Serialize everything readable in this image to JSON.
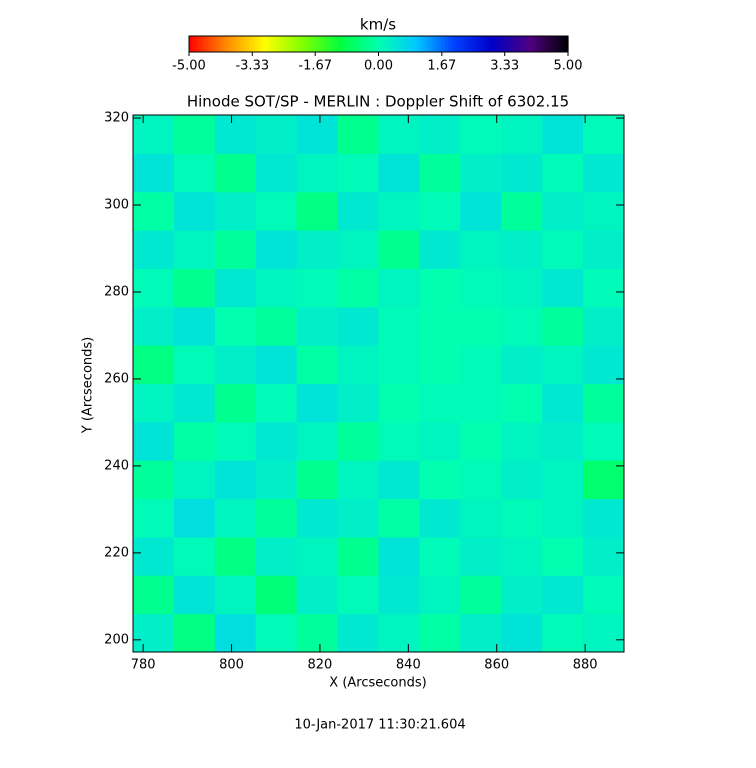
{
  "chart_data": {
    "type": "heatmap",
    "title": "Hinode SOT/SP - MERLIN : Doppler Shift of 6302.15",
    "x_label": "X (Arcseconds)",
    "y_label": "Y (Arcseconds)",
    "footer": "10-Jan-2017 11:30:21.604",
    "xlim": [
      777.7,
      888.8
    ],
    "ylim": [
      197.2,
      320.7
    ],
    "xticks": [
      780,
      800,
      820,
      840,
      860,
      880
    ],
    "yticks": [
      200,
      220,
      240,
      260,
      280,
      300,
      320
    ],
    "colorbar": {
      "title": "km/s",
      "clim": [
        -5,
        5
      ],
      "colormap": [
        "#ff0000",
        "#ff8c00",
        "#ffff00",
        "#80ff00",
        "#00ff40",
        "#00ffb0",
        "#00c8ff",
        "#0040ff",
        "#0000c8",
        "#500080",
        "#000000"
      ],
      "ticks": [
        {
          "value": -5,
          "label": "-5.00"
        },
        {
          "value": -3.33,
          "label": "-3.33"
        },
        {
          "value": -1.67,
          "label": "-1.67"
        },
        {
          "value": 0,
          "label": "0.00"
        },
        {
          "value": 1.67,
          "label": "1.67"
        },
        {
          "value": 3.33,
          "label": "3.33"
        },
        {
          "value": 5,
          "label": "5.00"
        }
      ]
    },
    "z": [
      [
        0.3,
        -0.4,
        0.6,
        0.1,
        -0.2,
        0.4,
        0.2,
        -0.1,
        0.3,
        0.5,
        0.1,
        0.2
      ],
      [
        -0.3,
        0.5,
        0.2,
        -0.5,
        0.3,
        0.1,
        0.4,
        0.2,
        -0.2,
        0.3,
        0.4,
        0.1
      ],
      [
        0.4,
        0.1,
        -0.4,
        0.3,
        0.2,
        -0.3,
        0.5,
        0.1,
        0.3,
        0.2,
        0.0,
        0.3
      ],
      [
        0.1,
        0.6,
        0.2,
        -0.2,
        0.4,
        0.3,
        -0.1,
        0.4,
        0.2,
        0.1,
        0.2,
        0.4
      ],
      [
        -0.2,
        0.2,
        0.5,
        0.3,
        -0.3,
        0.2,
        0.4,
        0.0,
        0.1,
        0.3,
        0.2,
        -0.6
      ],
      [
        0.5,
        -0.1,
        0.1,
        0.4,
        0.2,
        -0.2,
        0.1,
        0.2,
        0.0,
        0.2,
        0.3,
        0.1
      ],
      [
        0.2,
        0.4,
        -0.3,
        0.1,
        0.5,
        0.3,
        0.0,
        0.1,
        0.1,
        0.0,
        0.4,
        -0.2
      ],
      [
        -0.4,
        0.1,
        0.3,
        0.5,
        -0.1,
        0.2,
        0.1,
        0.0,
        0.1,
        0.3,
        0.2,
        0.4
      ],
      [
        0.3,
        0.5,
        0.0,
        -0.2,
        0.3,
        0.4,
        0.1,
        0.0,
        0.0,
        0.1,
        -0.2,
        0.3
      ],
      [
        0.1,
        -0.3,
        0.4,
        0.2,
        0.1,
        -0.1,
        0.2,
        0.0,
        0.1,
        0.2,
        0.4,
        0.1
      ],
      [
        0.4,
        0.2,
        -0.2,
        0.5,
        0.3,
        0.2,
        -0.3,
        0.4,
        0.2,
        0.3,
        0.1,
        0.3
      ],
      [
        -0.1,
        0.5,
        0.3,
        0.1,
        -0.4,
        0.4,
        0.2,
        0.1,
        0.5,
        -0.2,
        0.3,
        0.2
      ],
      [
        0.5,
        0.1,
        -0.3,
        0.4,
        0.2,
        0.1,
        0.5,
        -0.2,
        0.3,
        0.4,
        0.1,
        0.4
      ],
      [
        0.2,
        -0.2,
        0.4,
        0.3,
        0.5,
        -0.3,
        0.2,
        0.3,
        0.1,
        0.2,
        0.5,
        0.1
      ]
    ]
  }
}
